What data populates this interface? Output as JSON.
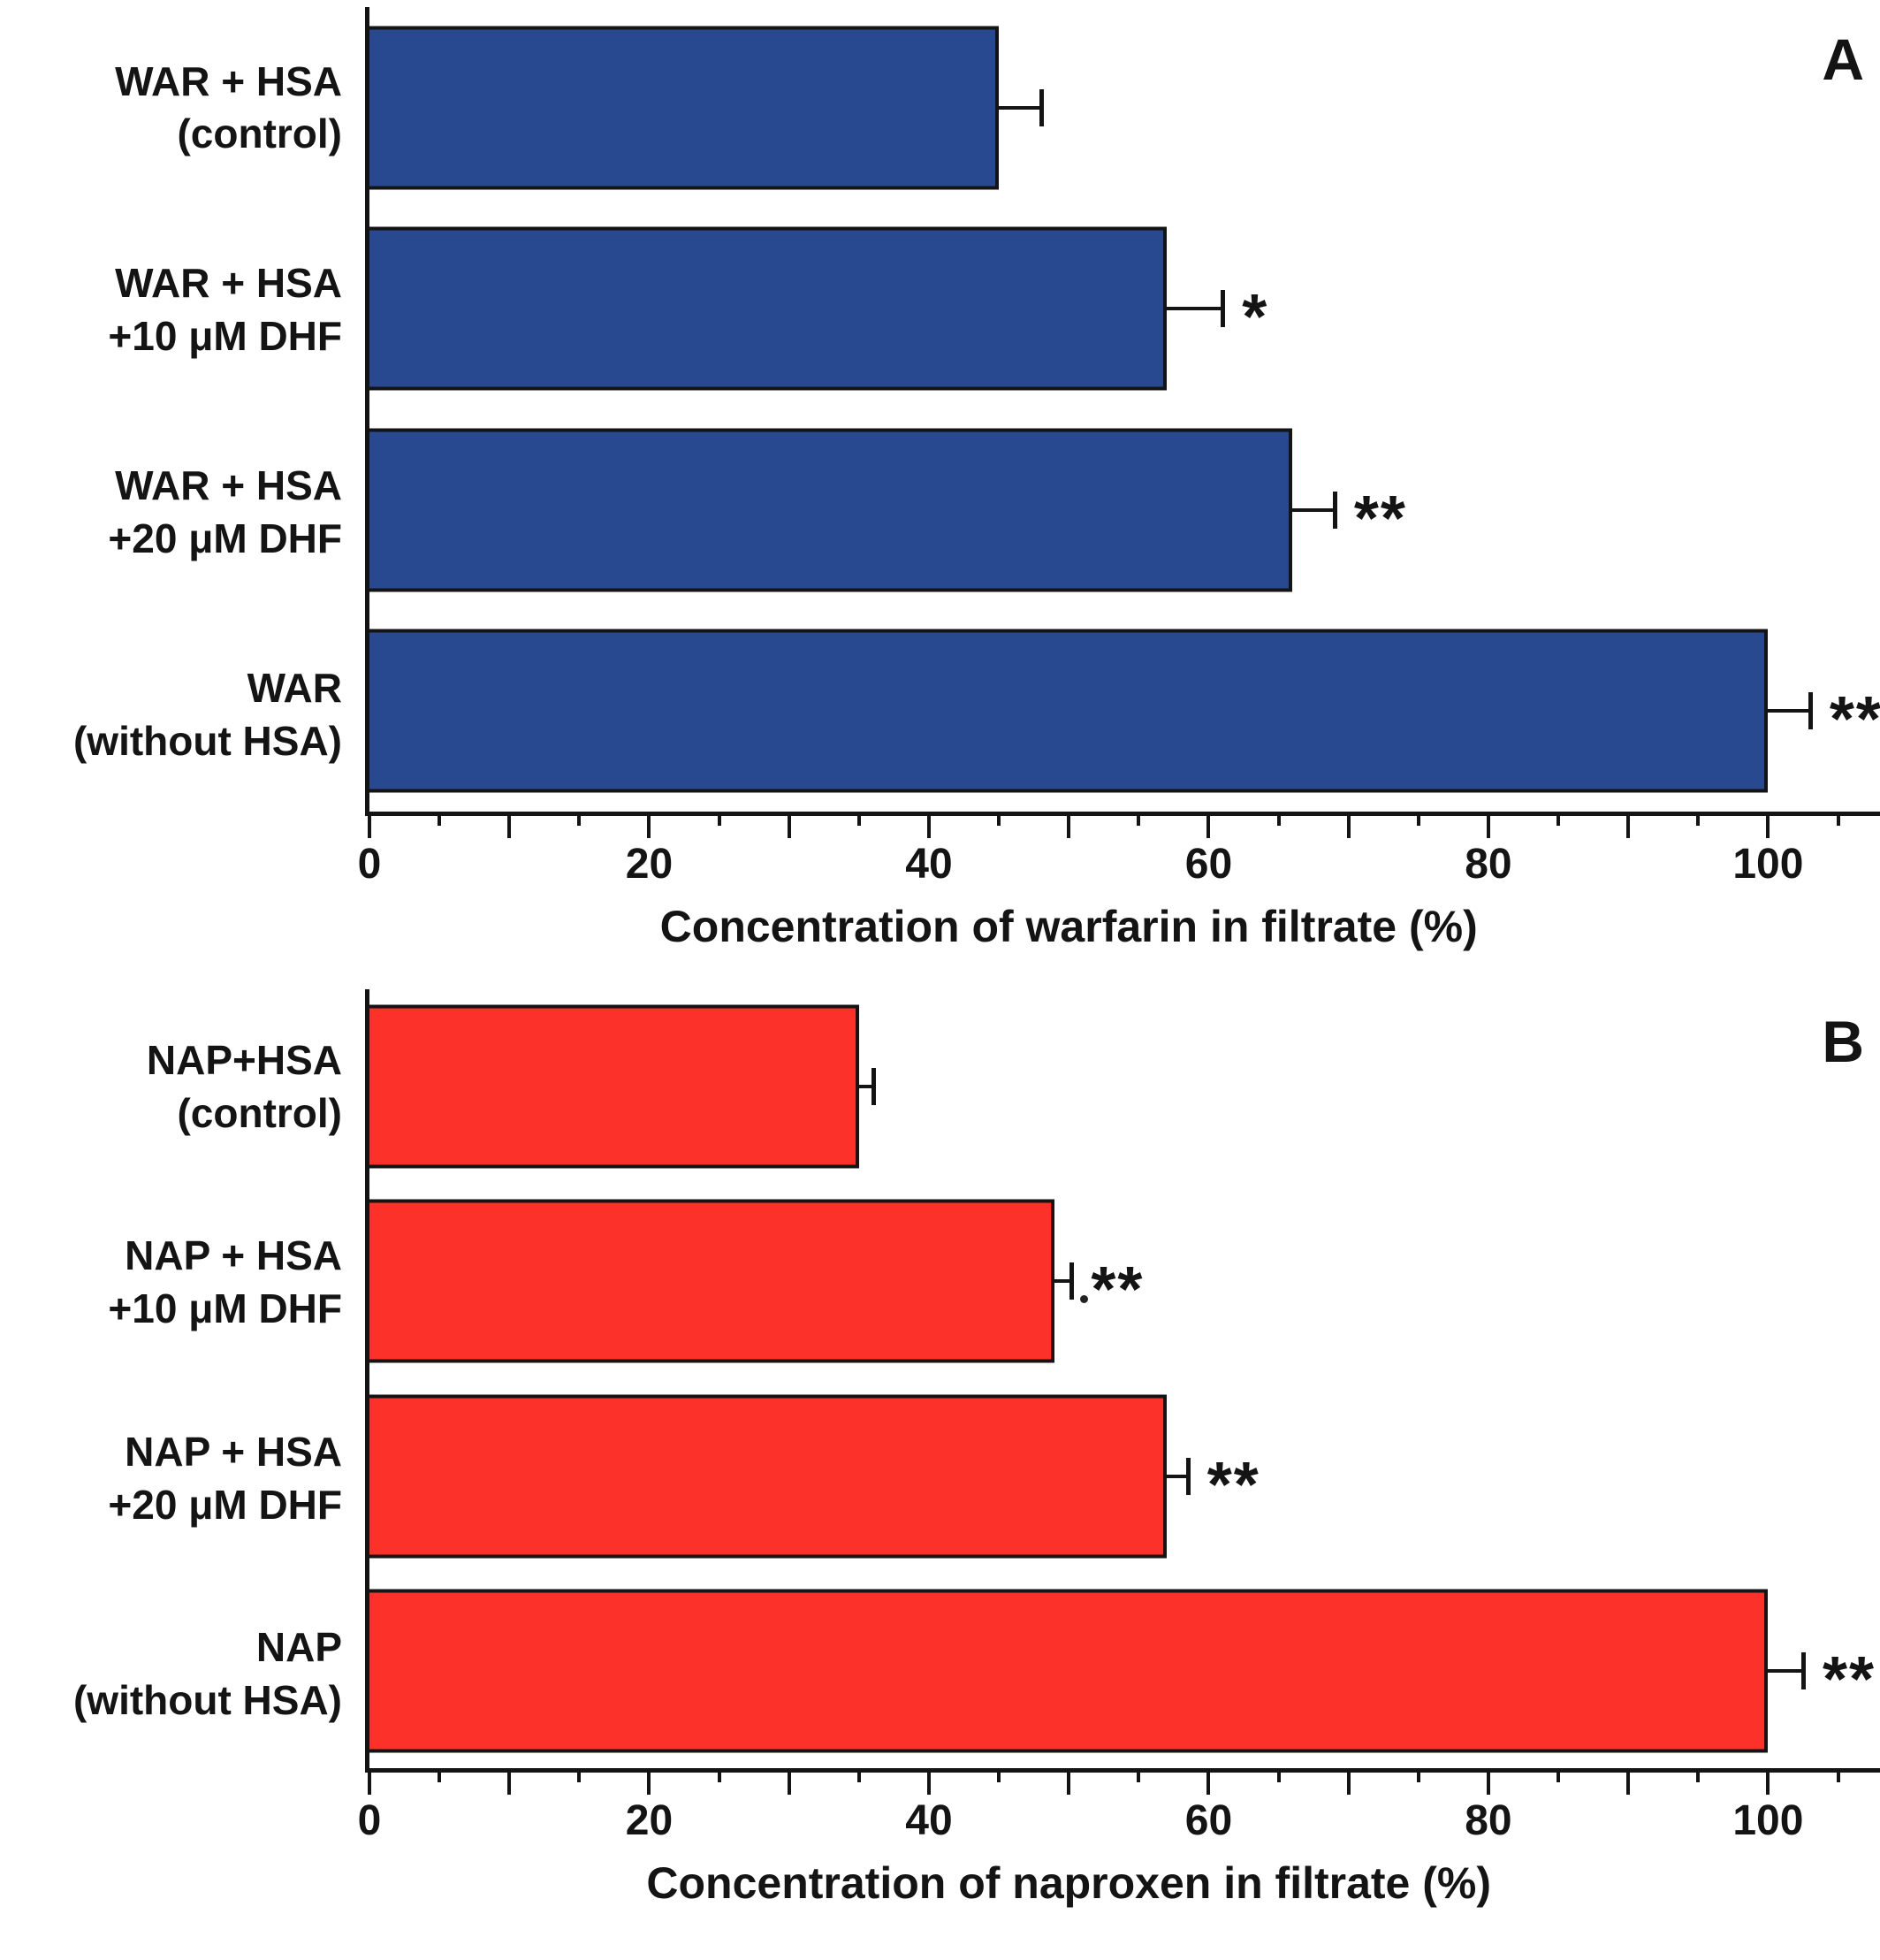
{
  "figure": {
    "background": "#ffffff",
    "axis_color": "#141414",
    "text_color": "#141414"
  },
  "chart_data": [
    {
      "type": "bar",
      "orientation": "horizontal",
      "panel_label": "A",
      "bar_color": "#28488f",
      "categories": [
        "WAR + HSA\n(control)",
        "WAR + HSA\n+10 μM DHF",
        "WAR + HSA\n+20 μM DHF",
        "WAR\n(without HSA)"
      ],
      "values": [
        45,
        57,
        66,
        100
      ],
      "errors": [
        3,
        4,
        3,
        3
      ],
      "significance": [
        "",
        "*",
        "**",
        "**"
      ],
      "xlabel": "Concentration of warfarin in filtrate (%)",
      "xticks": [
        0,
        20,
        40,
        60,
        80,
        100
      ],
      "minor_tick_step": 5,
      "xlim": [
        0,
        108
      ],
      "grid": false,
      "legend": "none"
    },
    {
      "type": "bar",
      "orientation": "horizontal",
      "panel_label": "B",
      "bar_color": "#fc312a",
      "categories": [
        "NAP+HSA\n(control)",
        "NAP + HSA\n+10 μM DHF",
        "NAP + HSA\n+20 μM DHF",
        "NAP\n(without HSA)"
      ],
      "values": [
        35,
        49,
        57,
        100
      ],
      "errors": [
        1,
        1.2,
        1.5,
        2.5
      ],
      "significance": [
        "",
        "**",
        "**",
        "**"
      ],
      "artifact_dots": [
        1
      ],
      "xlabel": "Concentration of naproxen in filtrate (%)",
      "xticks": [
        0,
        20,
        40,
        60,
        80,
        100
      ],
      "minor_tick_step": 5,
      "xlim": [
        0,
        108
      ],
      "grid": false,
      "legend": "none"
    }
  ]
}
